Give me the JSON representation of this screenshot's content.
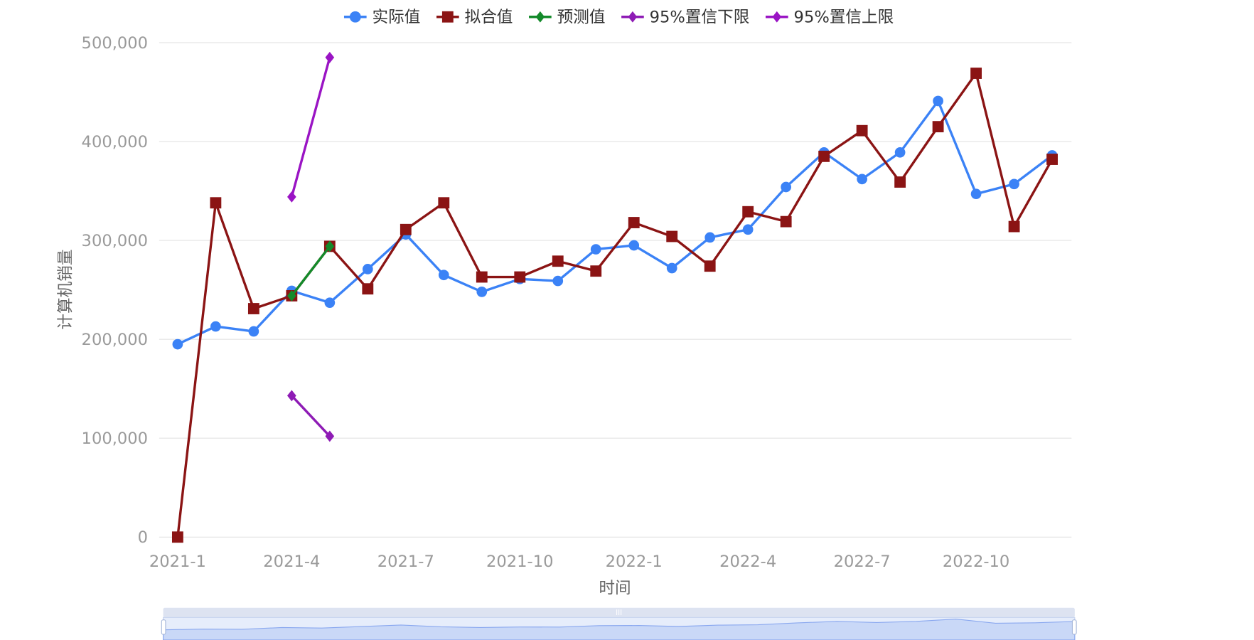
{
  "chart_data": {
    "type": "line",
    "xlabel": "时间",
    "ylabel": "计算机销量",
    "ylim": [
      0,
      500000
    ],
    "yticks": [
      "0",
      "100,000",
      "200,000",
      "300,000",
      "400,000",
      "500,000"
    ],
    "xticks": [
      "2021-1",
      "2021-4",
      "2021-7",
      "2021-10",
      "2022-1",
      "2022-4",
      "2022-7",
      "2022-10"
    ],
    "x": [
      "2021-1",
      "2021-2",
      "2021-3",
      "2021-4",
      "2021-5",
      "2021-6",
      "2021-7",
      "2021-8",
      "2021-9",
      "2021-10",
      "2021-11",
      "2021-12",
      "2022-1",
      "2022-2",
      "2022-3",
      "2022-4",
      "2022-5",
      "2022-6",
      "2022-7",
      "2022-8",
      "2022-9",
      "2022-10",
      "2022-11",
      "2022-12"
    ],
    "grid": true,
    "legend_position": "top",
    "series": [
      {
        "name": "实际值",
        "color": "#3b82f6",
        "marker": "circle",
        "values": [
          195000,
          213000,
          208000,
          249000,
          237000,
          271000,
          306000,
          265000,
          248000,
          261000,
          259000,
          291000,
          295000,
          272000,
          303000,
          311000,
          354000,
          389000,
          362000,
          389000,
          441000,
          347000,
          357000,
          386000
        ]
      },
      {
        "name": "拟合值",
        "color": "#8b1414",
        "marker": "square",
        "values": [
          0,
          338000,
          231000,
          244000,
          294000,
          251000,
          311000,
          338000,
          263000,
          263000,
          279000,
          269000,
          318000,
          304000,
          274000,
          329000,
          319000,
          385000,
          411000,
          359000,
          415000,
          469000,
          314000,
          382000
        ]
      },
      {
        "name": "预测值",
        "color": "#138a2a",
        "marker": "diamond",
        "values": [
          null,
          null,
          null,
          244000,
          294000,
          null,
          null,
          null,
          null,
          null,
          null,
          null,
          null,
          null,
          null,
          null,
          null,
          null,
          null,
          null,
          null,
          null,
          null,
          null
        ]
      },
      {
        "name": "95%置信下限",
        "color": "#8e1bb5",
        "marker": "diamond",
        "values": [
          null,
          null,
          null,
          143000,
          102000,
          null,
          null,
          null,
          null,
          null,
          null,
          null,
          null,
          null,
          null,
          null,
          null,
          null,
          null,
          null,
          null,
          null,
          null,
          null
        ]
      },
      {
        "name": "95%置信上限",
        "color": "#9a14c4",
        "marker": "diamond",
        "values": [
          null,
          null,
          null,
          344000,
          485000,
          null,
          null,
          null,
          null,
          null,
          null,
          null,
          null,
          null,
          null,
          null,
          null,
          null,
          null,
          null,
          null,
          null,
          null,
          null
        ]
      }
    ],
    "datazoom": {
      "start": 0,
      "end": 100
    }
  }
}
